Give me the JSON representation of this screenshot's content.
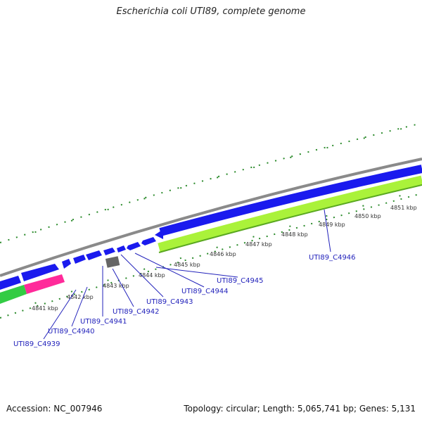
{
  "title": "Escherichia coli UTI89, complete genome",
  "footer": {
    "accession": "Accession: NC_007946",
    "summary": "Topology: circular; Length: 5,065,741 bp; Genes: 5,131"
  },
  "colors": {
    "forward_gene": "#1a1aee",
    "reverse_gene": "#aaf23a",
    "backbone": "#888888",
    "tick": "#2a8a2a",
    "label_line": "#2222bb",
    "rna_pink": "#ff2a9a",
    "rna_green": "#33cc44",
    "gray_feature": "#666666"
  },
  "ruler": [
    "4841 kbp",
    "4842 kbp",
    "4843 kbp",
    "4844 kbp",
    "4845 kbp",
    "4846 kbp",
    "4847 kbp",
    "4848 kbp",
    "4849 kbp",
    "4850 kbp",
    "4851 kbp"
  ],
  "gene_labels": [
    "UTI89_C4939",
    "UTI89_C4940",
    "UTI89_C4941",
    "UTI89_C4942",
    "UTI89_C4943",
    "UTI89_C4944",
    "UTI89_C4945",
    "UTI89_C4946"
  ]
}
